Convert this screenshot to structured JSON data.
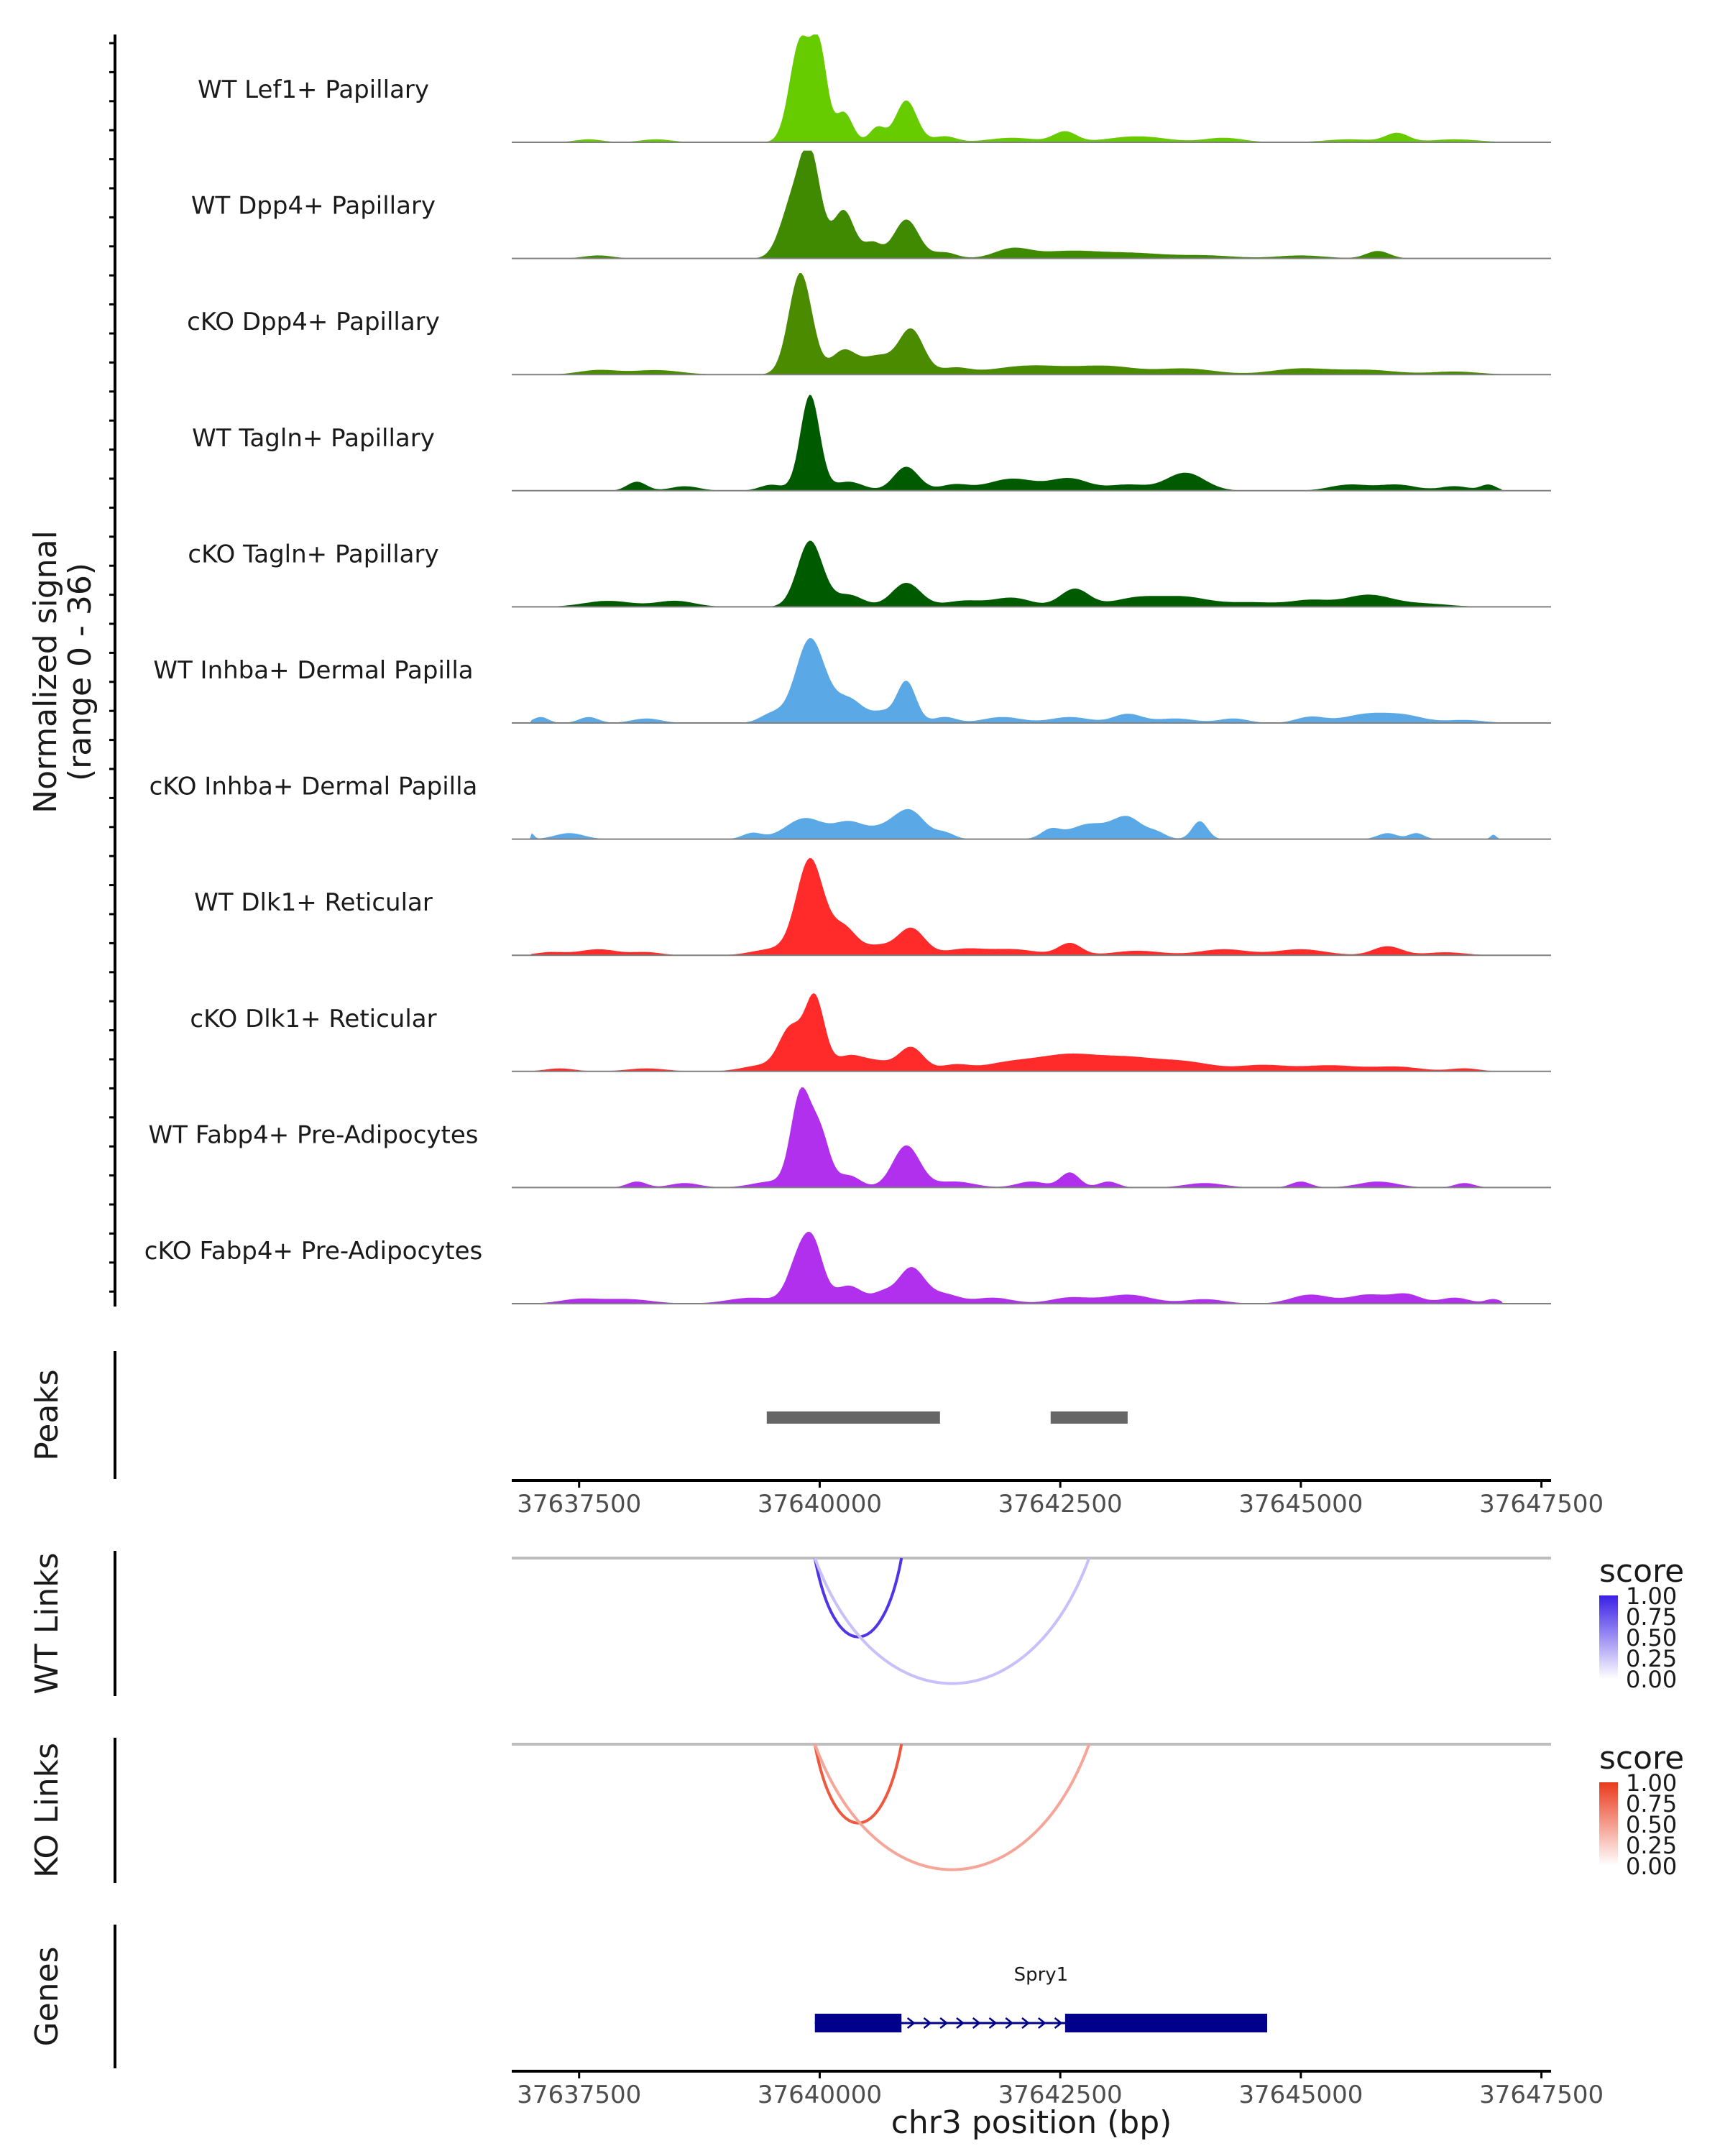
{
  "chart_data": {
    "type": "genome-browser",
    "region": {
      "chrom": "chr3",
      "start": 37636800,
      "end": 37647600
    },
    "xlabel": "chr3 position (bp)",
    "x_ticks": [
      37637500,
      37640000,
      37642500,
      37645000,
      37647500
    ],
    "x_tick_labels": [
      "37637500",
      "37640000",
      "37642500",
      "37645000",
      "37647500"
    ],
    "coverage": {
      "ylabel": "Normalized signal",
      "ylabel_range": "(range 0 - 36)",
      "ylim": [
        0,
        36
      ],
      "tracks": [
        {
          "name": "WT Lef1+ Papillary",
          "color": "#66cc00",
          "peaks": [
            [
              37637600,
              1,
              140
            ],
            [
              37638300,
              1,
              160
            ],
            [
              37639800,
              34,
              110
            ],
            [
              37640000,
              28,
              80
            ],
            [
              37640250,
              10,
              90
            ],
            [
              37640600,
              5,
              80
            ],
            [
              37640900,
              14,
              110
            ],
            [
              37641300,
              2,
              120
            ],
            [
              37642000,
              1.5,
              250
            ],
            [
              37642550,
              3.5,
              120
            ],
            [
              37643300,
              2,
              300
            ],
            [
              37644200,
              1.5,
              200
            ],
            [
              37645500,
              1,
              250
            ],
            [
              37646000,
              3,
              120
            ],
            [
              37646600,
              1,
              250
            ]
          ]
        },
        {
          "name": "WT Dpp4+ Papillary",
          "color": "#3f8a00",
          "peaks": [
            [
              37637700,
              1,
              150
            ],
            [
              37639700,
              16,
              120
            ],
            [
              37639900,
              34,
              110
            ],
            [
              37640250,
              16,
              110
            ],
            [
              37640550,
              5,
              90
            ],
            [
              37640900,
              13,
              130
            ],
            [
              37641300,
              2,
              120
            ],
            [
              37642000,
              3,
              180
            ],
            [
              37642600,
              2.5,
              350
            ],
            [
              37643300,
              1.5,
              300
            ],
            [
              37644000,
              1,
              300
            ],
            [
              37645000,
              1,
              250
            ],
            [
              37645800,
              2.5,
              120
            ]
          ]
        },
        {
          "name": "cKO Dpp4+ Papillary",
          "color": "#4b8b00",
          "peaks": [
            [
              37637700,
              1.5,
              200
            ],
            [
              37638300,
              1.5,
              250
            ],
            [
              37639800,
              34,
              120
            ],
            [
              37640250,
              8,
              130
            ],
            [
              37640600,
              6,
              150
            ],
            [
              37640950,
              15,
              130
            ],
            [
              37641400,
              2,
              150
            ],
            [
              37642200,
              3,
              400
            ],
            [
              37643000,
              2.5,
              300
            ],
            [
              37643800,
              2,
              300
            ],
            [
              37645000,
              2,
              300
            ],
            [
              37645700,
              1.5,
              300
            ],
            [
              37646600,
              1,
              250
            ]
          ]
        },
        {
          "name": "WT Tagln+ Papillary",
          "color": "#005a00",
          "peaks": [
            [
              37638100,
              3,
              100
            ],
            [
              37638600,
              1.5,
              150
            ],
            [
              37639500,
              2,
              120
            ],
            [
              37639900,
              32,
              100
            ],
            [
              37640300,
              3,
              150
            ],
            [
              37640900,
              8,
              130
            ],
            [
              37641400,
              2,
              150
            ],
            [
              37642000,
              4,
              250
            ],
            [
              37642600,
              4,
              200
            ],
            [
              37643200,
              2,
              200
            ],
            [
              37643800,
              6,
              200
            ],
            [
              37645500,
              2,
              200
            ],
            [
              37646000,
              2,
              200
            ],
            [
              37646600,
              1.5,
              150
            ],
            [
              37646950,
              2,
              80
            ]
          ]
        },
        {
          "name": "cKO Tagln+ Papillary",
          "color": "#005a00",
          "peaks": [
            [
              37637800,
              2,
              250
            ],
            [
              37638500,
              2,
              200
            ],
            [
              37639900,
              22,
              130
            ],
            [
              37640300,
              4,
              150
            ],
            [
              37640900,
              8,
              150
            ],
            [
              37641500,
              2,
              200
            ],
            [
              37642000,
              3,
              200
            ],
            [
              37642650,
              6,
              150
            ],
            [
              37643300,
              3,
              250
            ],
            [
              37643800,
              3,
              250
            ],
            [
              37644500,
              1.5,
              300
            ],
            [
              37645100,
              2,
              200
            ],
            [
              37645700,
              4,
              250
            ],
            [
              37646300,
              1,
              250
            ]
          ]
        },
        {
          "name": "WT Inhba+ Dermal Papilla",
          "color": "#5ba8e6",
          "peaks": [
            [
              37637100,
              2,
              80
            ],
            [
              37637600,
              2,
              100
            ],
            [
              37638200,
              1.5,
              150
            ],
            [
              37639500,
              3,
              120
            ],
            [
              37639900,
              28,
              150
            ],
            [
              37640300,
              8,
              160
            ],
            [
              37640650,
              3,
              100
            ],
            [
              37640900,
              14,
              100
            ],
            [
              37641300,
              2,
              120
            ],
            [
              37641900,
              2,
              200
            ],
            [
              37642600,
              2,
              200
            ],
            [
              37643200,
              3,
              150
            ],
            [
              37643700,
              1.5,
              200
            ],
            [
              37644300,
              1.5,
              150
            ],
            [
              37645100,
              2,
              150
            ],
            [
              37645700,
              3,
              250
            ],
            [
              37646100,
              2,
              200
            ],
            [
              37646700,
              1,
              200
            ]
          ]
        },
        {
          "name": "cKO Inhba+ Dermal Papilla",
          "color": "#5ba8e6",
          "peaks": [
            [
              37637000,
              2,
              30
            ],
            [
              37637400,
              2,
              150
            ],
            [
              37639300,
              2,
              100
            ],
            [
              37639850,
              7,
              200
            ],
            [
              37640300,
              5,
              150
            ],
            [
              37640700,
              4,
              200
            ],
            [
              37640950,
              8,
              150
            ],
            [
              37641300,
              2,
              100
            ],
            [
              37642400,
              3,
              100
            ],
            [
              37642800,
              5,
              200
            ],
            [
              37643200,
              7,
              150
            ],
            [
              37643500,
              2,
              100
            ],
            [
              37643950,
              6,
              80
            ],
            [
              37645900,
              2,
              100
            ],
            [
              37646200,
              2,
              80
            ],
            [
              37647000,
              1.5,
              30
            ]
          ]
        },
        {
          "name": "WT Dlk1+ Reticular",
          "color": "#ff2a2a",
          "peaks": [
            [
              37637200,
              1,
              150
            ],
            [
              37637700,
              2,
              200
            ],
            [
              37638200,
              1,
              150
            ],
            [
              37639500,
              2,
              200
            ],
            [
              37639900,
              32,
              140
            ],
            [
              37640250,
              9,
              130
            ],
            [
              37640600,
              3,
              150
            ],
            [
              37640950,
              9,
              140
            ],
            [
              37641500,
              2,
              200
            ],
            [
              37642000,
              2,
              250
            ],
            [
              37642600,
              4,
              120
            ],
            [
              37643300,
              1.5,
              250
            ],
            [
              37644200,
              2,
              250
            ],
            [
              37645000,
              2,
              250
            ],
            [
              37645900,
              3,
              150
            ],
            [
              37646500,
              1,
              200
            ]
          ]
        },
        {
          "name": "cKO Dlk1+ Reticular",
          "color": "#ff2a2a",
          "peaks": [
            [
              37637300,
              1,
              150
            ],
            [
              37638200,
              1,
              200
            ],
            [
              37639400,
              2,
              200
            ],
            [
              37639700,
              14,
              120
            ],
            [
              37639950,
              24,
              100
            ],
            [
              37640300,
              5,
              150
            ],
            [
              37640600,
              3,
              150
            ],
            [
              37640950,
              8,
              130
            ],
            [
              37641400,
              2,
              150
            ],
            [
              37642000,
              3,
              300
            ],
            [
              37642600,
              5,
              300
            ],
            [
              37643200,
              4,
              300
            ],
            [
              37643800,
              3,
              300
            ],
            [
              37644600,
              2,
              250
            ],
            [
              37645300,
              2,
              300
            ],
            [
              37646000,
              1.5,
              250
            ],
            [
              37646700,
              1,
              150
            ]
          ]
        },
        {
          "name": "WT Fabp4+ Pre-Adipocytes",
          "color": "#b030ee",
          "peaks": [
            [
              37638100,
              2,
              100
            ],
            [
              37638600,
              1.5,
              150
            ],
            [
              37639500,
              2,
              200
            ],
            [
              37639800,
              30,
              100
            ],
            [
              37640000,
              18,
              100
            ],
            [
              37640300,
              4,
              120
            ],
            [
              37640900,
              14,
              140
            ],
            [
              37641400,
              2,
              200
            ],
            [
              37642200,
              2,
              150
            ],
            [
              37642600,
              5,
              100
            ],
            [
              37643000,
              2,
              100
            ],
            [
              37644000,
              1.5,
              200
            ],
            [
              37645000,
              2,
              100
            ],
            [
              37645800,
              2,
              200
            ],
            [
              37646700,
              1.5,
              100
            ]
          ]
        },
        {
          "name": "cKO Fabp4+ Pre-Adipocytes",
          "color": "#b030ee",
          "peaks": [
            [
              37637500,
              1.5,
              200
            ],
            [
              37638000,
              1.5,
              250
            ],
            [
              37639300,
              2,
              250
            ],
            [
              37639800,
              16,
              120
            ],
            [
              37639950,
              14,
              100
            ],
            [
              37640300,
              6,
              150
            ],
            [
              37640650,
              3,
              100
            ],
            [
              37640950,
              12,
              140
            ],
            [
              37641300,
              3,
              150
            ],
            [
              37641800,
              2,
              200
            ],
            [
              37642600,
              2,
              200
            ],
            [
              37643200,
              3,
              250
            ],
            [
              37644000,
              1.5,
              200
            ],
            [
              37645100,
              3,
              200
            ],
            [
              37645700,
              3,
              200
            ],
            [
              37646100,
              3,
              150
            ],
            [
              37646600,
              2,
              150
            ],
            [
              37647000,
              1.5,
              80
            ]
          ]
        }
      ]
    },
    "peaks": {
      "label": "Peaks",
      "color": "#666666",
      "regions": [
        [
          37639450,
          37641250
        ],
        [
          37642400,
          37643200
        ]
      ]
    },
    "links": [
      {
        "label": "WT Links",
        "legend_title": "score",
        "colors": [
          "#ffffff",
          "#3a1fe6"
        ],
        "legend_ticks": [
          "1.00",
          "0.75",
          "0.50",
          "0.25",
          "0.00"
        ],
        "arcs": [
          {
            "start": 37639950,
            "end": 37640850,
            "score": 0.9
          },
          {
            "start": 37639950,
            "end": 37642800,
            "score": 0.28
          }
        ]
      },
      {
        "label": "KO Links",
        "legend_title": "score",
        "colors": [
          "#ffffff",
          "#ea3a1c"
        ],
        "legend_ticks": [
          "1.00",
          "0.75",
          "0.50",
          "0.25",
          "0.00"
        ],
        "arcs": [
          {
            "start": 37639950,
            "end": 37640850,
            "score": 0.85
          },
          {
            "start": 37639950,
            "end": 37642800,
            "score": 0.45
          }
        ]
      }
    ],
    "genes": {
      "label": "Genes",
      "color": "#00008b",
      "items": [
        {
          "name": "Spry1",
          "start": 37639950,
          "end": 37644650,
          "strand": "+",
          "exons": [
            [
              37639950,
              37640850
            ],
            [
              37642550,
              37644650
            ]
          ]
        }
      ]
    }
  }
}
